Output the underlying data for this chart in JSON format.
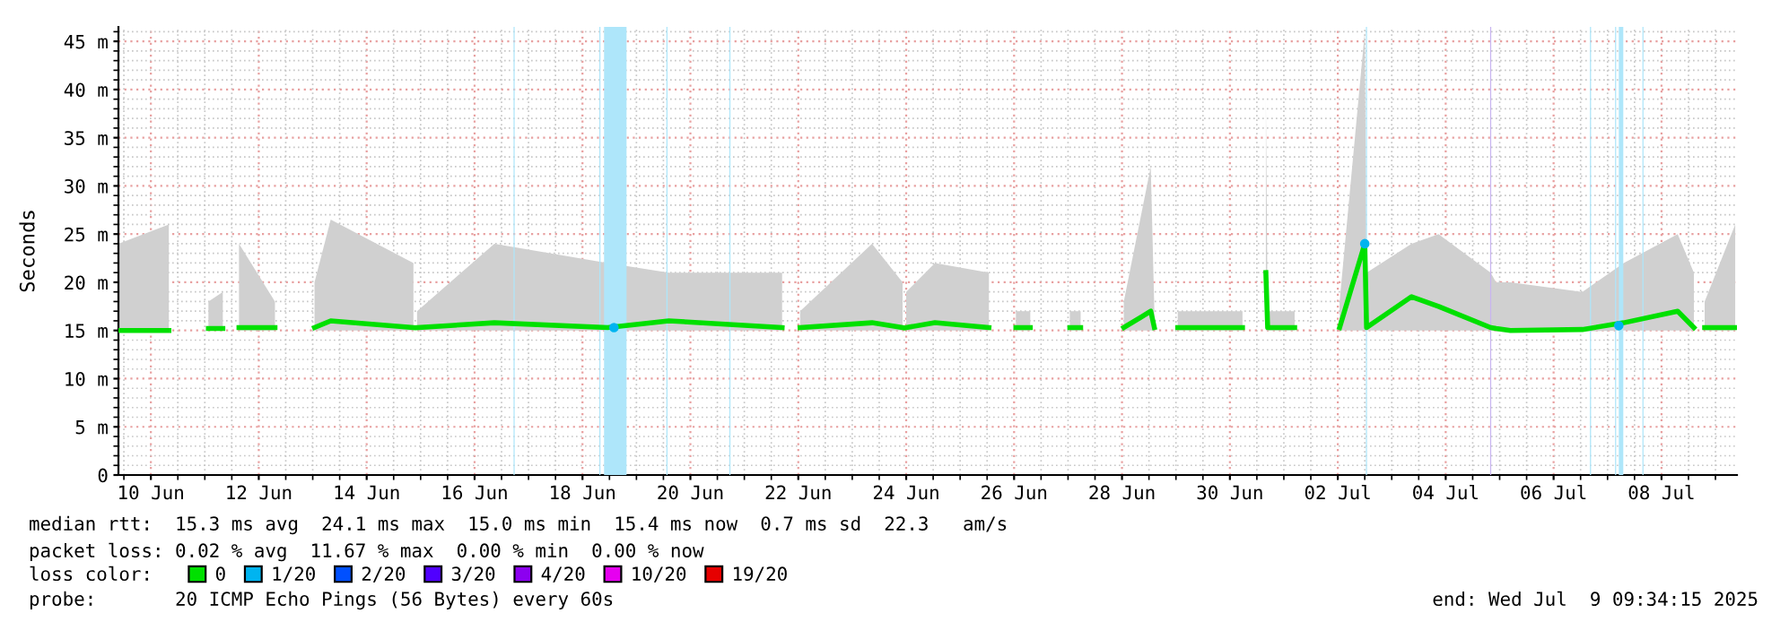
{
  "chart_data": {
    "type": "line",
    "ylabel": "Seconds",
    "xlim": [
      "2025-06-09T09:34",
      "2025-07-09T09:34"
    ],
    "xticks": [
      {
        "value": "2025-06-10",
        "label": "10 Jun"
      },
      {
        "value": "2025-06-12",
        "label": "12 Jun"
      },
      {
        "value": "2025-06-14",
        "label": "14 Jun"
      },
      {
        "value": "2025-06-16",
        "label": "16 Jun"
      },
      {
        "value": "2025-06-18",
        "label": "18 Jun"
      },
      {
        "value": "2025-06-20",
        "label": "20 Jun"
      },
      {
        "value": "2025-06-22",
        "label": "22 Jun"
      },
      {
        "value": "2025-06-24",
        "label": "24 Jun"
      },
      {
        "value": "2025-06-26",
        "label": "26 Jun"
      },
      {
        "value": "2025-06-28",
        "label": "28 Jun"
      },
      {
        "value": "2025-06-30",
        "label": "30 Jun"
      },
      {
        "value": "2025-07-02",
        "label": "02 Jul"
      },
      {
        "value": "2025-07-04",
        "label": "04 Jul"
      },
      {
        "value": "2025-07-06",
        "label": "06 Jul"
      },
      {
        "value": "2025-07-08",
        "label": "08 Jul"
      }
    ],
    "ylim": [
      0,
      46.5
    ],
    "yticks": [
      0,
      {
        "value": 5,
        "label": "5 m"
      },
      {
        "value": 10,
        "label": "10 m"
      },
      {
        "value": 15,
        "label": "15 m"
      },
      {
        "value": 20,
        "label": "20 m"
      },
      {
        "value": 25,
        "label": "25 m"
      },
      {
        "value": 30,
        "label": "30 m"
      },
      {
        "value": 35,
        "label": "35 m"
      },
      {
        "value": 40,
        "label": "40 m"
      },
      {
        "value": 45,
        "label": "45 m"
      }
    ],
    "grid": true,
    "legend": "bottom",
    "legend_title": "loss color:",
    "series": [
      {
        "name": "0",
        "color": "#00e000",
        "x": [
          "2025-06-09T09:36",
          "2025-06-10T08:00",
          "2025-06-10T16:00",
          "2025-06-11T01:36",
          "2025-06-11T08:00",
          "2025-06-11T12:00",
          "2025-06-11T15:12",
          "2025-06-12T07:12",
          "2025-06-12T16:00",
          "2025-06-13T00:48",
          "2025-06-13T08:00",
          "2025-06-14T20:48",
          "2025-06-14T21:30",
          "2025-06-14T22:24",
          "2025-06-16T08:48",
          "2025-06-18T11:12",
          "2025-06-19T14:24",
          "2025-06-21T16:48",
          "2025-06-21T20:00",
          "2025-06-22T00:48",
          "2025-06-23T08:48",
          "2025-06-23T22:24",
          "2025-06-23T23:12",
          "2025-06-24T00:00",
          "2025-06-24T12:48",
          "2025-06-25T12:48",
          "2025-06-25T20:00",
          "2025-06-26T00:48",
          "2025-06-26T07:12",
          "2025-06-26T12:00",
          "2025-06-27T00:48",
          "2025-06-27T05:36",
          "2025-06-27T14:00",
          "2025-06-28T00:48",
          "2025-06-28T12:48",
          "2025-06-28T14:24",
          "2025-06-29T00:00",
          "2025-06-29T00:48",
          "2025-06-30T05:36",
          "2025-06-30T08:00",
          "2025-06-30T16:00",
          "2025-06-30T16:48",
          "2025-07-01T04:48",
          "2025-07-01T12:00",
          "2025-07-02T00:48",
          "2025-07-02T12:00",
          "2025-07-02T12:48",
          "2025-07-03T08:48",
          "2025-07-03T20:48",
          "2025-07-04T20:00",
          "2025-07-04T22:24",
          "2025-07-05T04:48",
          "2025-07-06T12:48",
          "2025-07-07T07:12",
          "2025-07-08T07:12",
          "2025-07-08T14:24",
          "2025-07-08T16:00",
          "2025-07-08T19:12",
          "2025-07-09T08:48"
        ],
        "values": [
          15,
          15,
          null,
          15.2,
          15.2,
          null,
          15.3,
          15.3,
          null,
          15.3,
          16,
          15.3,
          null,
          15.3,
          15.8,
          15.3,
          16,
          15.3,
          null,
          15.3,
          15.8,
          15.3,
          null,
          15.3,
          15.8,
          15.3,
          null,
          15.3,
          15.3,
          null,
          15.3,
          15.3,
          null,
          15.3,
          17,
          15.3,
          null,
          15.3,
          15.3,
          null,
          21,
          15.3,
          15.3,
          null,
          15.3,
          24,
          15.3,
          18.5,
          17.5,
          15.3,
          15.2,
          15,
          15.1,
          15.8,
          17,
          15.3,
          null,
          15.3,
          15.3
        ],
        "lower": [
          14.8,
          14.8,
          null,
          15,
          15,
          null,
          15,
          15,
          null,
          15,
          15,
          15,
          null,
          15,
          15,
          15,
          15,
          15,
          null,
          15,
          15,
          15,
          null,
          15,
          15,
          15,
          null,
          15,
          15,
          null,
          15,
          15,
          null,
          15,
          15,
          15,
          null,
          15,
          15,
          null,
          15,
          15,
          15,
          null,
          15,
          15,
          15,
          15,
          15,
          15,
          14.9,
          14.8,
          14.9,
          15,
          15,
          15,
          null,
          15,
          15
        ],
        "upper": [
          24,
          26,
          null,
          18,
          19,
          null,
          24,
          18,
          null,
          20,
          26.5,
          22,
          null,
          17,
          24,
          22,
          21,
          21,
          null,
          17,
          24,
          20,
          null,
          19,
          22,
          21,
          null,
          17,
          17,
          null,
          17,
          17,
          null,
          18,
          32,
          17,
          null,
          17,
          17,
          null,
          39,
          17,
          17,
          null,
          18,
          46,
          21,
          24,
          25,
          21,
          20,
          20,
          19,
          22,
          25,
          21,
          null,
          18,
          26
        ]
      },
      {
        "name": "1/20",
        "type": "scatter",
        "color": "#00b4f0",
        "x": [
          "2025-06-18T14:00",
          "2025-07-02T12:00",
          "2025-07-07T05:00"
        ],
        "values": [
          15.3,
          24,
          15.5
        ]
      },
      {
        "name": "2/20",
        "color": "#0050ff"
      },
      {
        "name": "3/20",
        "color": "#5000ff"
      },
      {
        "name": "4/20",
        "color": "#8c00f0"
      },
      {
        "name": "10/20",
        "color": "#e600f0"
      },
      {
        "name": "19/20",
        "color": "#e60000"
      }
    ],
    "bands": [
      {
        "axis": "x",
        "from": "2025-06-16T17:20",
        "to": "2025-06-16T17:50",
        "color": "#aee6fa"
      },
      {
        "axis": "x",
        "from": "2025-06-18T07:30",
        "to": "2025-06-18T08:00",
        "color": "#aee6fa"
      },
      {
        "axis": "x",
        "from": "2025-06-18T09:36",
        "to": "2025-06-18T19:36",
        "color": "#aee6fa"
      },
      {
        "axis": "x",
        "from": "2025-06-19T13:20",
        "to": "2025-06-19T13:50",
        "color": "#aee6fa"
      },
      {
        "axis": "x",
        "from": "2025-06-20T17:20",
        "to": "2025-06-20T17:50",
        "color": "#aee6fa"
      },
      {
        "axis": "x",
        "from": "2025-07-02T12:30",
        "to": "2025-07-02T13:00",
        "color": "#aee6fa"
      },
      {
        "axis": "x",
        "from": "2025-07-04T19:45",
        "to": "2025-07-04T20:15",
        "color": "#c8b4f0"
      },
      {
        "axis": "x",
        "from": "2025-07-06T16:10",
        "to": "2025-07-06T16:40",
        "color": "#aee6fa"
      },
      {
        "axis": "x",
        "from": "2025-07-07T03:20",
        "to": "2025-07-07T03:50",
        "color": "#aee6fa"
      },
      {
        "axis": "x",
        "from": "2025-07-07T05:00",
        "to": "2025-07-07T07:00",
        "color": "#aee6fa"
      },
      {
        "axis": "x",
        "from": "2025-07-07T15:30",
        "to": "2025-07-07T16:00",
        "color": "#aee6fa"
      }
    ],
    "annotations": [
      "median rtt:  15.3 ms avg  24.1 ms max  15.0 ms min  15.4 ms now  0.7 ms sd  22.3   am/s",
      "packet loss: 0.02 % avg  11.67 % max  0.00 % min  0.00 % now",
      "probe:       20 ICMP Echo Pings (56 Bytes) every 60s",
      "end: Wed Jul  9 09:34:15 2025"
    ]
  }
}
